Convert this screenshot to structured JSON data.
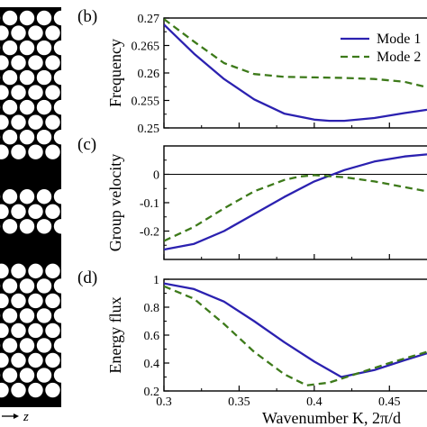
{
  "structure_panel": {
    "axis_label": "z"
  },
  "chart_data": [
    {
      "type": "line",
      "panel_label": "(b)",
      "xlabel": "",
      "ylabel": "Frequency",
      "xlim": [
        0.3,
        0.475
      ],
      "ylim": [
        0.25,
        0.27
      ],
      "yticks": [
        "0.25",
        "0.255",
        "0.26",
        "0.265",
        "0.27"
      ],
      "ytick_values": [
        0.25,
        0.255,
        0.26,
        0.265,
        0.27
      ],
      "legend": [
        "Mode 1",
        "Mode 2"
      ],
      "legend_position": "top-right",
      "series": [
        {
          "name": "Mode 1",
          "color": "#2b21b0",
          "dash": "solid",
          "x": [
            0.3,
            0.32,
            0.34,
            0.36,
            0.38,
            0.4,
            0.41,
            0.42,
            0.44,
            0.46,
            0.475
          ],
          "y": [
            0.2688,
            0.2635,
            0.2589,
            0.2552,
            0.2526,
            0.2515,
            0.2513,
            0.2513,
            0.2518,
            0.2527,
            0.2533
          ]
        },
        {
          "name": "Mode 2",
          "color": "#3d7a1a",
          "dash": "dashed",
          "x": [
            0.3,
            0.32,
            0.34,
            0.36,
            0.38,
            0.4,
            0.42,
            0.44,
            0.46,
            0.475
          ],
          "y": [
            0.2698,
            0.2657,
            0.2618,
            0.2598,
            0.2593,
            0.2592,
            0.2591,
            0.2589,
            0.2584,
            0.2574
          ]
        }
      ]
    },
    {
      "type": "line",
      "panel_label": "(c)",
      "xlabel": "",
      "ylabel": "Group velocity",
      "xlim": [
        0.3,
        0.475
      ],
      "ylim": [
        -0.3,
        0.1
      ],
      "yticks": [
        "-0.2",
        "-0.1",
        "0"
      ],
      "ytick_values": [
        -0.2,
        -0.1,
        0.0
      ],
      "zero_line": true,
      "series": [
        {
          "name": "Mode 1",
          "color": "#2b21b0",
          "dash": "solid",
          "x": [
            0.3,
            0.32,
            0.34,
            0.36,
            0.38,
            0.4,
            0.42,
            0.44,
            0.46,
            0.475
          ],
          "y": [
            -0.265,
            -0.245,
            -0.2,
            -0.14,
            -0.08,
            -0.025,
            0.015,
            0.045,
            0.063,
            0.07
          ]
        },
        {
          "name": "Mode 2",
          "color": "#3d7a1a",
          "dash": "dashed",
          "x": [
            0.3,
            0.32,
            0.34,
            0.36,
            0.38,
            0.39,
            0.4,
            0.42,
            0.44,
            0.46,
            0.475
          ],
          "y": [
            -0.235,
            -0.185,
            -0.12,
            -0.06,
            -0.02,
            -0.008,
            -0.003,
            -0.01,
            -0.025,
            -0.045,
            -0.06
          ]
        }
      ]
    },
    {
      "type": "line",
      "panel_label": "(d)",
      "xlabel": "Wavenumber K, 2π/d",
      "ylabel": "Energy flux",
      "xlim": [
        0.3,
        0.475
      ],
      "ylim": [
        0.2,
        1.0
      ],
      "xticks": [
        "0.3",
        "0.35",
        "0.4",
        "0.45"
      ],
      "xtick_values": [
        0.3,
        0.35,
        0.4,
        0.45
      ],
      "yticks": [
        "0.2",
        "0.4",
        "0.6",
        "0.8",
        "1"
      ],
      "ytick_values": [
        0.2,
        0.4,
        0.6,
        0.8,
        1.0
      ],
      "series": [
        {
          "name": "Mode 1",
          "color": "#2b21b0",
          "dash": "solid",
          "x": [
            0.3,
            0.32,
            0.34,
            0.36,
            0.38,
            0.4,
            0.418,
            0.44,
            0.46,
            0.475
          ],
          "y": [
            0.97,
            0.93,
            0.84,
            0.7,
            0.55,
            0.41,
            0.3,
            0.35,
            0.42,
            0.47
          ]
        },
        {
          "name": "Mode 2",
          "color": "#3d7a1a",
          "dash": "dashed",
          "x": [
            0.3,
            0.32,
            0.34,
            0.36,
            0.38,
            0.395,
            0.41,
            0.43,
            0.45,
            0.475
          ],
          "y": [
            0.95,
            0.86,
            0.68,
            0.48,
            0.32,
            0.24,
            0.26,
            0.33,
            0.4,
            0.48
          ]
        }
      ]
    }
  ]
}
